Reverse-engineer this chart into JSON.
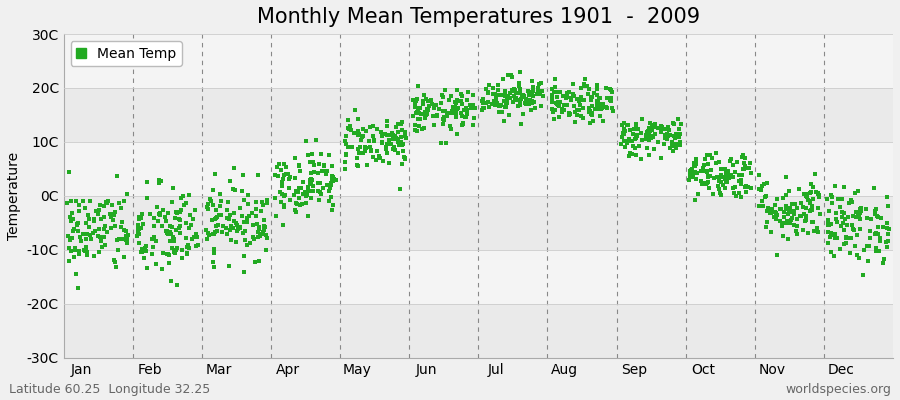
{
  "title": "Monthly Mean Temperatures 1901  -  2009",
  "ylabel": "Temperature",
  "month_labels": [
    "Jan",
    "Feb",
    "Mar",
    "Apr",
    "May",
    "Jun",
    "Jul",
    "Aug",
    "Sep",
    "Oct",
    "Nov",
    "Dec"
  ],
  "ylim": [
    -30,
    30
  ],
  "yticks": [
    -30,
    -20,
    -10,
    0,
    10,
    20,
    30
  ],
  "ytick_labels": [
    "-30C",
    "-20C",
    "-10C",
    "0C",
    "10C",
    "20C",
    "30C"
  ],
  "n_years": 109,
  "monthly_means": [
    -6.5,
    -7.0,
    -4.5,
    2.5,
    10.0,
    15.5,
    18.5,
    17.0,
    11.0,
    4.0,
    -2.5,
    -5.5
  ],
  "monthly_stds": [
    4.0,
    4.5,
    3.5,
    3.0,
    2.5,
    2.0,
    1.8,
    1.8,
    1.8,
    2.2,
    3.0,
    3.5
  ],
  "dot_color": "#22AA22",
  "dot_size": 5,
  "background_color": "#F0F0F0",
  "plot_bg_color": "#F0F0F0",
  "band_light": "#F8F8F8",
  "band_dark": "#E8E8E8",
  "legend_label": "Mean Temp",
  "bottom_left_text": "Latitude 60.25  Longitude 32.25",
  "bottom_right_text": "worldspecies.org",
  "title_fontsize": 15,
  "axis_fontsize": 10,
  "tick_fontsize": 10,
  "annotation_fontsize": 9,
  "dashed_line_color": "#888888",
  "grid_color": "#CCCCCC"
}
